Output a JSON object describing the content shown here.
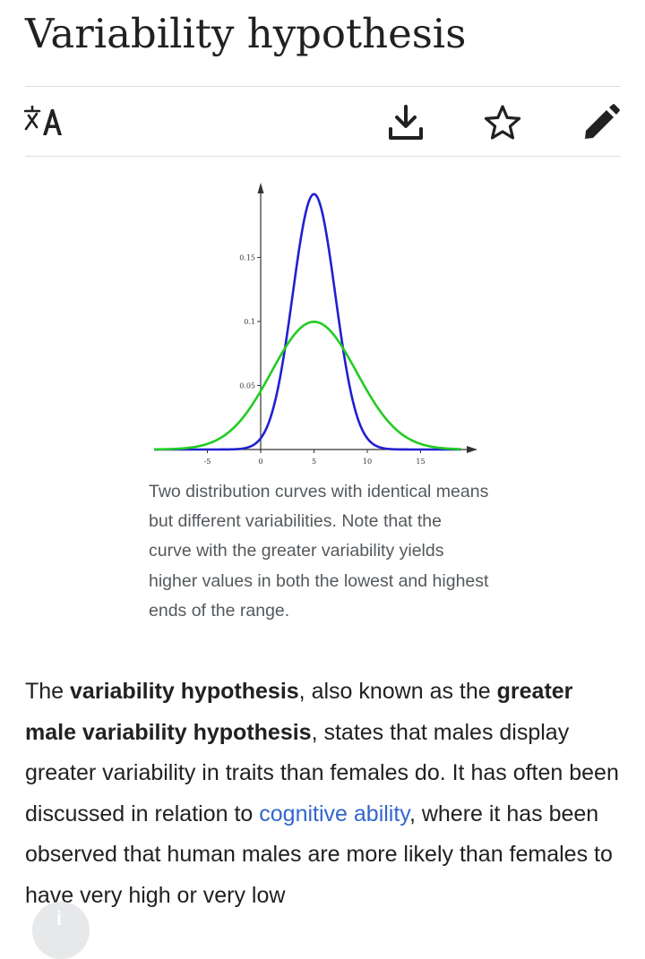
{
  "page": {
    "title": "Variability hypothesis"
  },
  "toolbar": {
    "language_icon": "translate-icon",
    "download_icon": "download-icon",
    "watch_icon": "star-icon",
    "edit_icon": "pencil-icon"
  },
  "figure": {
    "caption": "Two distribution curves with identical means but different variabilities. Note that the curve with the greater variability yields higher values in both the lowest and highest ends of the range."
  },
  "chart_data": {
    "type": "line",
    "x_ticks": [
      "-5",
      "0",
      "5",
      "10",
      "15"
    ],
    "y_ticks": [
      "0.05",
      "0.1",
      "0.15"
    ],
    "xlim": [
      -10,
      20
    ],
    "ylim": [
      0,
      0.2
    ],
    "series": [
      {
        "color": "#2020d0",
        "distribution": "normal",
        "mean": 5,
        "sd": 2
      },
      {
        "color": "#22cc22",
        "distribution": "normal",
        "mean": 5,
        "sd": 4
      }
    ]
  },
  "article": {
    "intro_1": "The ",
    "bold_1": "variability hypothesis",
    "intro_2": ", also known as the ",
    "bold_2": "greater male variability hypothesis",
    "intro_3": ", states that males display greater variability in traits than females do. It has often been discussed in relation to ",
    "link_1": "cognitive ability",
    "intro_4": ", where it has been observed that human males are more likely than females to have very high or very low"
  },
  "fab": {
    "label": "i",
    "icon": "info-icon"
  },
  "colors": {
    "link": "#3366cc",
    "text": "#202122",
    "caption": "#54595d"
  }
}
